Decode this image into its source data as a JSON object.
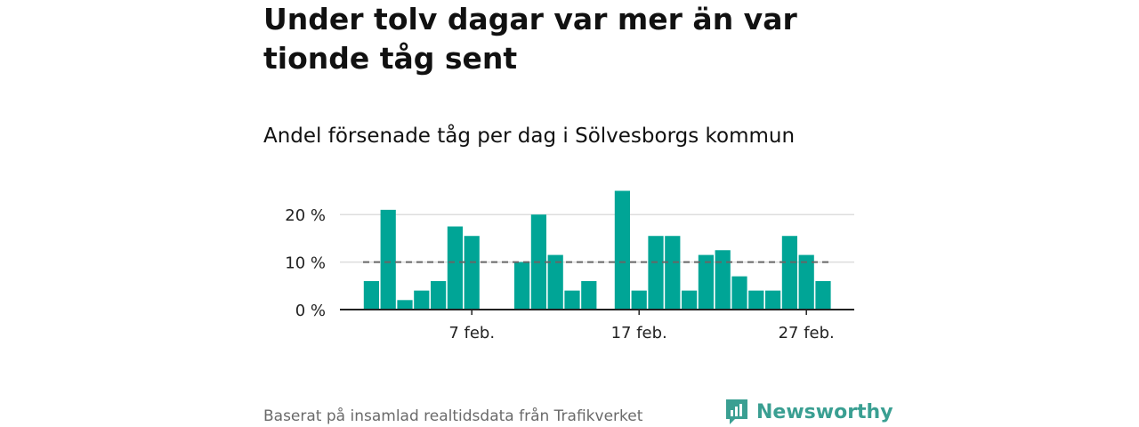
{
  "header": {
    "title": "Under tolv dagar var mer än var tionde tåg sent",
    "subtitle": "Andel försenade tåg per dag i Sölvesborgs kommun"
  },
  "footer": {
    "source": "Baserat på insamlad realtidsdata från Trafikverket",
    "brand": "Newsworthy",
    "brand_icon": "newsworthy-logo-icon"
  },
  "colors": {
    "bar": "#00a596",
    "reference_line": "#666666",
    "grid": "#dddddd",
    "axis": "#222222",
    "brand": "#3a9f92"
  },
  "chart_data": {
    "type": "bar",
    "x": [
      "1 feb.",
      "2 feb.",
      "3 feb.",
      "4 feb.",
      "5 feb.",
      "6 feb.",
      "7 feb.",
      "8 feb.",
      "9 feb.",
      "10 feb.",
      "11 feb.",
      "12 feb.",
      "13 feb.",
      "14 feb.",
      "15 feb.",
      "16 feb.",
      "17 feb.",
      "18 feb.",
      "19 feb.",
      "20 feb.",
      "21 feb.",
      "22 feb.",
      "23 feb.",
      "24 feb.",
      "25 feb.",
      "26 feb.",
      "27 feb.",
      "28 feb."
    ],
    "values": [
      6,
      21,
      2,
      4,
      6,
      17.5,
      15.5,
      null,
      null,
      10,
      20,
      11.5,
      4,
      6,
      null,
      25,
      4,
      15.5,
      15.5,
      4,
      11.5,
      12.5,
      7,
      4,
      4,
      15.5,
      11.5,
      6
    ],
    "unit": "%",
    "reference_line": 10,
    "y_ticks": [
      0,
      10,
      20
    ],
    "y_tick_labels": [
      "0 %",
      "10 %",
      "20 %"
    ],
    "x_tick_labels": [
      {
        "x": "7 feb.",
        "label": "7 feb."
      },
      {
        "x": "17 feb.",
        "label": "17 feb."
      },
      {
        "x": "27 feb.",
        "label": "27 feb."
      }
    ],
    "ylim": [
      0,
      25
    ],
    "grid": true,
    "legend": false
  }
}
